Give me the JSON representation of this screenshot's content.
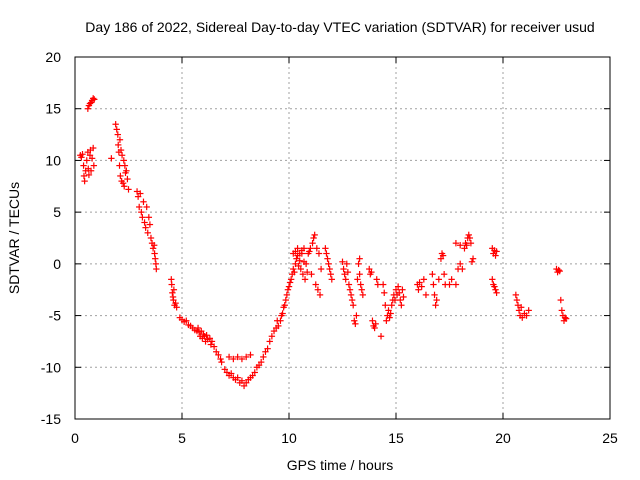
{
  "chart_data": {
    "type": "scatter",
    "title": "Day 186 of 2022, Sidereal Day-to-day VTEC variation (SDTVAR) for receiver usud",
    "xlabel": "GPS time / hours",
    "ylabel": "SDTVAR / TECUs",
    "xlim": [
      0,
      25
    ],
    "ylim": [
      -15,
      20
    ],
    "xticks": [
      0,
      5,
      10,
      15,
      20,
      25
    ],
    "yticks": [
      -15,
      -10,
      -5,
      0,
      5,
      10,
      15,
      20
    ],
    "xtick_labels": [
      "0",
      "5",
      "10",
      "15",
      "20",
      "25"
    ],
    "ytick_labels": [
      "-15",
      "-10",
      "-5",
      "0",
      "5",
      "10",
      "15",
      "20"
    ],
    "grid": true,
    "marker": "+",
    "color": "#ff0000",
    "series": [
      {
        "name": "SDTVAR",
        "points": [
          [
            0.25,
            10.5
          ],
          [
            0.3,
            10.3
          ],
          [
            0.35,
            10.6
          ],
          [
            0.4,
            9.5
          ],
          [
            0.42,
            8.5
          ],
          [
            0.45,
            8.0
          ],
          [
            0.5,
            9.0
          ],
          [
            0.55,
            10.0
          ],
          [
            0.6,
            10.8
          ],
          [
            0.62,
            9.2
          ],
          [
            0.65,
            8.6
          ],
          [
            0.7,
            10.5
          ],
          [
            0.72,
            11.0
          ],
          [
            0.75,
            9.0
          ],
          [
            0.8,
            10.2
          ],
          [
            0.85,
            11.2
          ],
          [
            0.88,
            9.5
          ],
          [
            0.6,
            15.0
          ],
          [
            0.65,
            15.3
          ],
          [
            0.7,
            15.5
          ],
          [
            0.75,
            15.6
          ],
          [
            0.8,
            15.8
          ],
          [
            0.85,
            16.0
          ],
          [
            0.9,
            15.9
          ],
          [
            1.7,
            10.2
          ],
          [
            1.9,
            13.5
          ],
          [
            1.95,
            13.0
          ],
          [
            2.0,
            12.5
          ],
          [
            2.02,
            11.5
          ],
          [
            2.05,
            10.8
          ],
          [
            2.08,
            9.5
          ],
          [
            2.1,
            12.0
          ],
          [
            2.12,
            8.5
          ],
          [
            2.15,
            11.0
          ],
          [
            2.18,
            8.0
          ],
          [
            2.2,
            10.5
          ],
          [
            2.25,
            7.8
          ],
          [
            2.28,
            10.0
          ],
          [
            2.3,
            7.5
          ],
          [
            2.33,
            9.5
          ],
          [
            2.36,
            8.8
          ],
          [
            2.4,
            9.0
          ],
          [
            2.45,
            8.2
          ],
          [
            2.5,
            7.2
          ],
          [
            2.9,
            7.0
          ],
          [
            2.95,
            6.5
          ],
          [
            3.0,
            5.5
          ],
          [
            3.05,
            6.8
          ],
          [
            3.1,
            5.0
          ],
          [
            3.15,
            4.5
          ],
          [
            3.2,
            6.0
          ],
          [
            3.25,
            4.0
          ],
          [
            3.3,
            3.5
          ],
          [
            3.35,
            5.5
          ],
          [
            3.4,
            3.0
          ],
          [
            3.45,
            4.5
          ],
          [
            3.5,
            3.8
          ],
          [
            3.55,
            2.5
          ],
          [
            3.6,
            2.0
          ],
          [
            3.65,
            1.5
          ],
          [
            3.7,
            1.8
          ],
          [
            3.72,
            1.0
          ],
          [
            3.75,
            0.5
          ],
          [
            3.78,
            0.0
          ],
          [
            3.8,
            -0.5
          ],
          [
            4.5,
            -1.5
          ],
          [
            4.52,
            -2.0
          ],
          [
            4.55,
            -2.8
          ],
          [
            4.58,
            -3.2
          ],
          [
            4.6,
            -3.5
          ],
          [
            4.62,
            -2.5
          ],
          [
            4.65,
            -4.0
          ],
          [
            4.7,
            -3.8
          ],
          [
            4.75,
            -4.2
          ],
          [
            4.9,
            -5.2
          ],
          [
            5.0,
            -5.4
          ],
          [
            5.1,
            -5.6
          ],
          [
            5.2,
            -5.5
          ],
          [
            5.3,
            -5.9
          ],
          [
            5.4,
            -6.0
          ],
          [
            5.5,
            -6.2
          ],
          [
            5.6,
            -6.4
          ],
          [
            5.7,
            -6.5
          ],
          [
            5.75,
            -6.2
          ],
          [
            5.8,
            -6.6
          ],
          [
            5.85,
            -7.0
          ],
          [
            5.9,
            -6.5
          ],
          [
            5.95,
            -7.2
          ],
          [
            6.0,
            -6.8
          ],
          [
            6.05,
            -7.0
          ],
          [
            6.1,
            -7.5
          ],
          [
            6.15,
            -6.9
          ],
          [
            6.2,
            -7.3
          ],
          [
            6.3,
            -7.2
          ],
          [
            6.35,
            -7.8
          ],
          [
            6.4,
            -7.5
          ],
          [
            6.5,
            -8.0
          ],
          [
            6.6,
            -8.5
          ],
          [
            6.7,
            -8.8
          ],
          [
            6.8,
            -9.2
          ],
          [
            6.85,
            -9.5
          ],
          [
            7.0,
            -10.2
          ],
          [
            7.1,
            -10.5
          ],
          [
            7.2,
            -10.8
          ],
          [
            7.3,
            -10.6
          ],
          [
            7.4,
            -11.0
          ],
          [
            7.5,
            -11.2
          ],
          [
            7.6,
            -11.0
          ],
          [
            7.7,
            -11.5
          ],
          [
            7.8,
            -11.3
          ],
          [
            7.9,
            -11.8
          ],
          [
            8.0,
            -11.5
          ],
          [
            8.1,
            -11.2
          ],
          [
            8.2,
            -11.0
          ],
          [
            8.3,
            -10.8
          ],
          [
            8.4,
            -10.5
          ],
          [
            8.5,
            -10.0
          ],
          [
            8.6,
            -9.8
          ],
          [
            8.7,
            -9.5
          ],
          [
            8.8,
            -9.0
          ],
          [
            8.9,
            -8.5
          ],
          [
            9.0,
            -8.2
          ],
          [
            7.2,
            -9.0
          ],
          [
            7.4,
            -9.2
          ],
          [
            7.6,
            -9.0
          ],
          [
            7.8,
            -9.2
          ],
          [
            8.0,
            -9.0
          ],
          [
            8.2,
            -8.8
          ],
          [
            9.1,
            -7.5
          ],
          [
            9.2,
            -7.0
          ],
          [
            9.3,
            -6.5
          ],
          [
            9.4,
            -6.2
          ],
          [
            9.45,
            -5.5
          ],
          [
            9.5,
            -6.0
          ],
          [
            9.6,
            -5.5
          ],
          [
            9.65,
            -5.0
          ],
          [
            9.7,
            -4.8
          ],
          [
            9.75,
            -4.2
          ],
          [
            9.8,
            -4.0
          ],
          [
            9.85,
            -3.5
          ],
          [
            9.9,
            -3.0
          ],
          [
            9.95,
            -2.5
          ],
          [
            10.0,
            -2.2
          ],
          [
            10.05,
            -1.8
          ],
          [
            10.1,
            -1.5
          ],
          [
            10.15,
            -1.0
          ],
          [
            10.2,
            -0.5
          ],
          [
            10.25,
            -0.8
          ],
          [
            10.3,
            0.0
          ],
          [
            10.35,
            0.5
          ],
          [
            10.4,
            0.8
          ],
          [
            10.45,
            -0.2
          ],
          [
            10.5,
            0.3
          ],
          [
            10.55,
            -0.5
          ],
          [
            10.6,
            1.0
          ],
          [
            10.65,
            -1.0
          ],
          [
            10.7,
            0.2
          ],
          [
            10.75,
            -1.5
          ],
          [
            10.8,
            0.0
          ],
          [
            10.85,
            -0.8
          ],
          [
            10.9,
            1.0
          ],
          [
            10.95,
            1.2
          ],
          [
            11.0,
            1.5
          ],
          [
            11.05,
            -1.0
          ],
          [
            11.1,
            2.0
          ],
          [
            11.15,
            2.5
          ],
          [
            11.2,
            2.8
          ],
          [
            11.25,
            -2.0
          ],
          [
            11.3,
            1.5
          ],
          [
            11.35,
            -2.5
          ],
          [
            11.4,
            1.0
          ],
          [
            11.45,
            -3.0
          ],
          [
            11.5,
            -0.5
          ],
          [
            10.2,
            1.0
          ],
          [
            10.3,
            1.2
          ],
          [
            10.4,
            1.5
          ],
          [
            10.5,
            1.0
          ],
          [
            10.6,
            1.3
          ],
          [
            10.7,
            1.5
          ],
          [
            11.7,
            1.5
          ],
          [
            11.75,
            1.0
          ],
          [
            11.8,
            0.5
          ],
          [
            11.85,
            0.0
          ],
          [
            11.9,
            -0.5
          ],
          [
            11.95,
            -1.0
          ],
          [
            12.0,
            -1.5
          ],
          [
            12.5,
            0.2
          ],
          [
            12.55,
            -0.5
          ],
          [
            12.6,
            -1.0
          ],
          [
            12.65,
            -1.5
          ],
          [
            12.7,
            0.0
          ],
          [
            12.75,
            -0.8
          ],
          [
            12.8,
            -2.0
          ],
          [
            12.85,
            -2.5
          ],
          [
            12.9,
            -3.0
          ],
          [
            12.95,
            -3.5
          ],
          [
            13.0,
            -4.0
          ],
          [
            13.05,
            -5.5
          ],
          [
            13.1,
            -5.8
          ],
          [
            13.15,
            -5.0
          ],
          [
            13.2,
            -1.5
          ],
          [
            13.25,
            0.0
          ],
          [
            13.3,
            -1.0
          ],
          [
            13.35,
            -2.0
          ],
          [
            13.4,
            -2.5
          ],
          [
            13.45,
            -3.0
          ],
          [
            13.3,
            0.5
          ],
          [
            13.75,
            -0.5
          ],
          [
            13.8,
            -1.0
          ],
          [
            13.85,
            -0.8
          ],
          [
            13.9,
            -5.5
          ],
          [
            13.95,
            -6.0
          ],
          [
            14.0,
            -6.2
          ],
          [
            14.05,
            -5.8
          ],
          [
            14.1,
            -1.5
          ],
          [
            14.15,
            -2.0
          ],
          [
            14.3,
            -7.0
          ],
          [
            14.4,
            -2.0
          ],
          [
            14.45,
            -2.8
          ],
          [
            14.5,
            -4.0
          ],
          [
            14.55,
            -5.5
          ],
          [
            14.6,
            -5.0
          ],
          [
            14.65,
            -4.5
          ],
          [
            14.7,
            -5.2
          ],
          [
            14.75,
            -4.8
          ],
          [
            14.8,
            -4.0
          ],
          [
            14.85,
            -3.5
          ],
          [
            14.9,
            -3.0
          ],
          [
            14.95,
            -3.5
          ],
          [
            15.0,
            -2.5
          ],
          [
            15.05,
            -3.0
          ],
          [
            15.1,
            -2.2
          ],
          [
            15.15,
            -2.8
          ],
          [
            15.2,
            -3.5
          ],
          [
            15.25,
            -4.0
          ],
          [
            15.3,
            -2.5
          ],
          [
            15.35,
            -3.2
          ],
          [
            16.0,
            -2.0
          ],
          [
            16.05,
            -2.5
          ],
          [
            16.1,
            -1.8
          ],
          [
            16.2,
            -2.2
          ],
          [
            16.3,
            -1.5
          ],
          [
            16.4,
            -3.0
          ],
          [
            16.7,
            -1.0
          ],
          [
            16.75,
            -2.0
          ],
          [
            16.8,
            -3.0
          ],
          [
            16.85,
            -4.0
          ],
          [
            16.9,
            -3.5
          ],
          [
            17.0,
            -1.5
          ],
          [
            17.1,
            0.5
          ],
          [
            17.15,
            1.0
          ],
          [
            17.2,
            0.8
          ],
          [
            17.25,
            -1.0
          ],
          [
            17.3,
            -2.0
          ],
          [
            17.5,
            -2.0
          ],
          [
            17.6,
            -1.5
          ],
          [
            17.8,
            -2.0
          ],
          [
            17.9,
            -0.5
          ],
          [
            18.0,
            0.0
          ],
          [
            18.1,
            -0.5
          ],
          [
            18.2,
            1.5
          ],
          [
            18.25,
            2.0
          ],
          [
            18.3,
            1.8
          ],
          [
            18.35,
            2.5
          ],
          [
            18.4,
            2.8
          ],
          [
            18.45,
            2.5
          ],
          [
            18.5,
            2.0
          ],
          [
            18.55,
            0.2
          ],
          [
            18.6,
            0.5
          ],
          [
            17.8,
            2.0
          ],
          [
            18.0,
            1.8
          ],
          [
            19.5,
            1.5
          ],
          [
            19.55,
            1.0
          ],
          [
            19.6,
            1.3
          ],
          [
            19.65,
            0.8
          ],
          [
            19.7,
            1.2
          ],
          [
            19.5,
            -1.5
          ],
          [
            19.55,
            -2.0
          ],
          [
            19.6,
            -2.2
          ],
          [
            19.65,
            -2.5
          ],
          [
            19.7,
            -2.8
          ],
          [
            20.6,
            -3.0
          ],
          [
            20.65,
            -3.5
          ],
          [
            20.7,
            -4.0
          ],
          [
            20.75,
            -4.5
          ],
          [
            20.8,
            -5.0
          ],
          [
            20.85,
            -4.2
          ],
          [
            20.9,
            -5.2
          ],
          [
            21.0,
            -4.8
          ],
          [
            21.1,
            -5.0
          ],
          [
            21.2,
            -4.5
          ],
          [
            22.5,
            -0.5
          ],
          [
            22.55,
            -0.8
          ],
          [
            22.6,
            -0.6
          ],
          [
            22.65,
            -0.7
          ],
          [
            22.7,
            -3.5
          ],
          [
            22.75,
            -4.5
          ],
          [
            22.8,
            -5.0
          ],
          [
            22.85,
            -5.5
          ],
          [
            22.9,
            -5.2
          ],
          [
            22.95,
            -5.3
          ]
        ]
      }
    ]
  }
}
